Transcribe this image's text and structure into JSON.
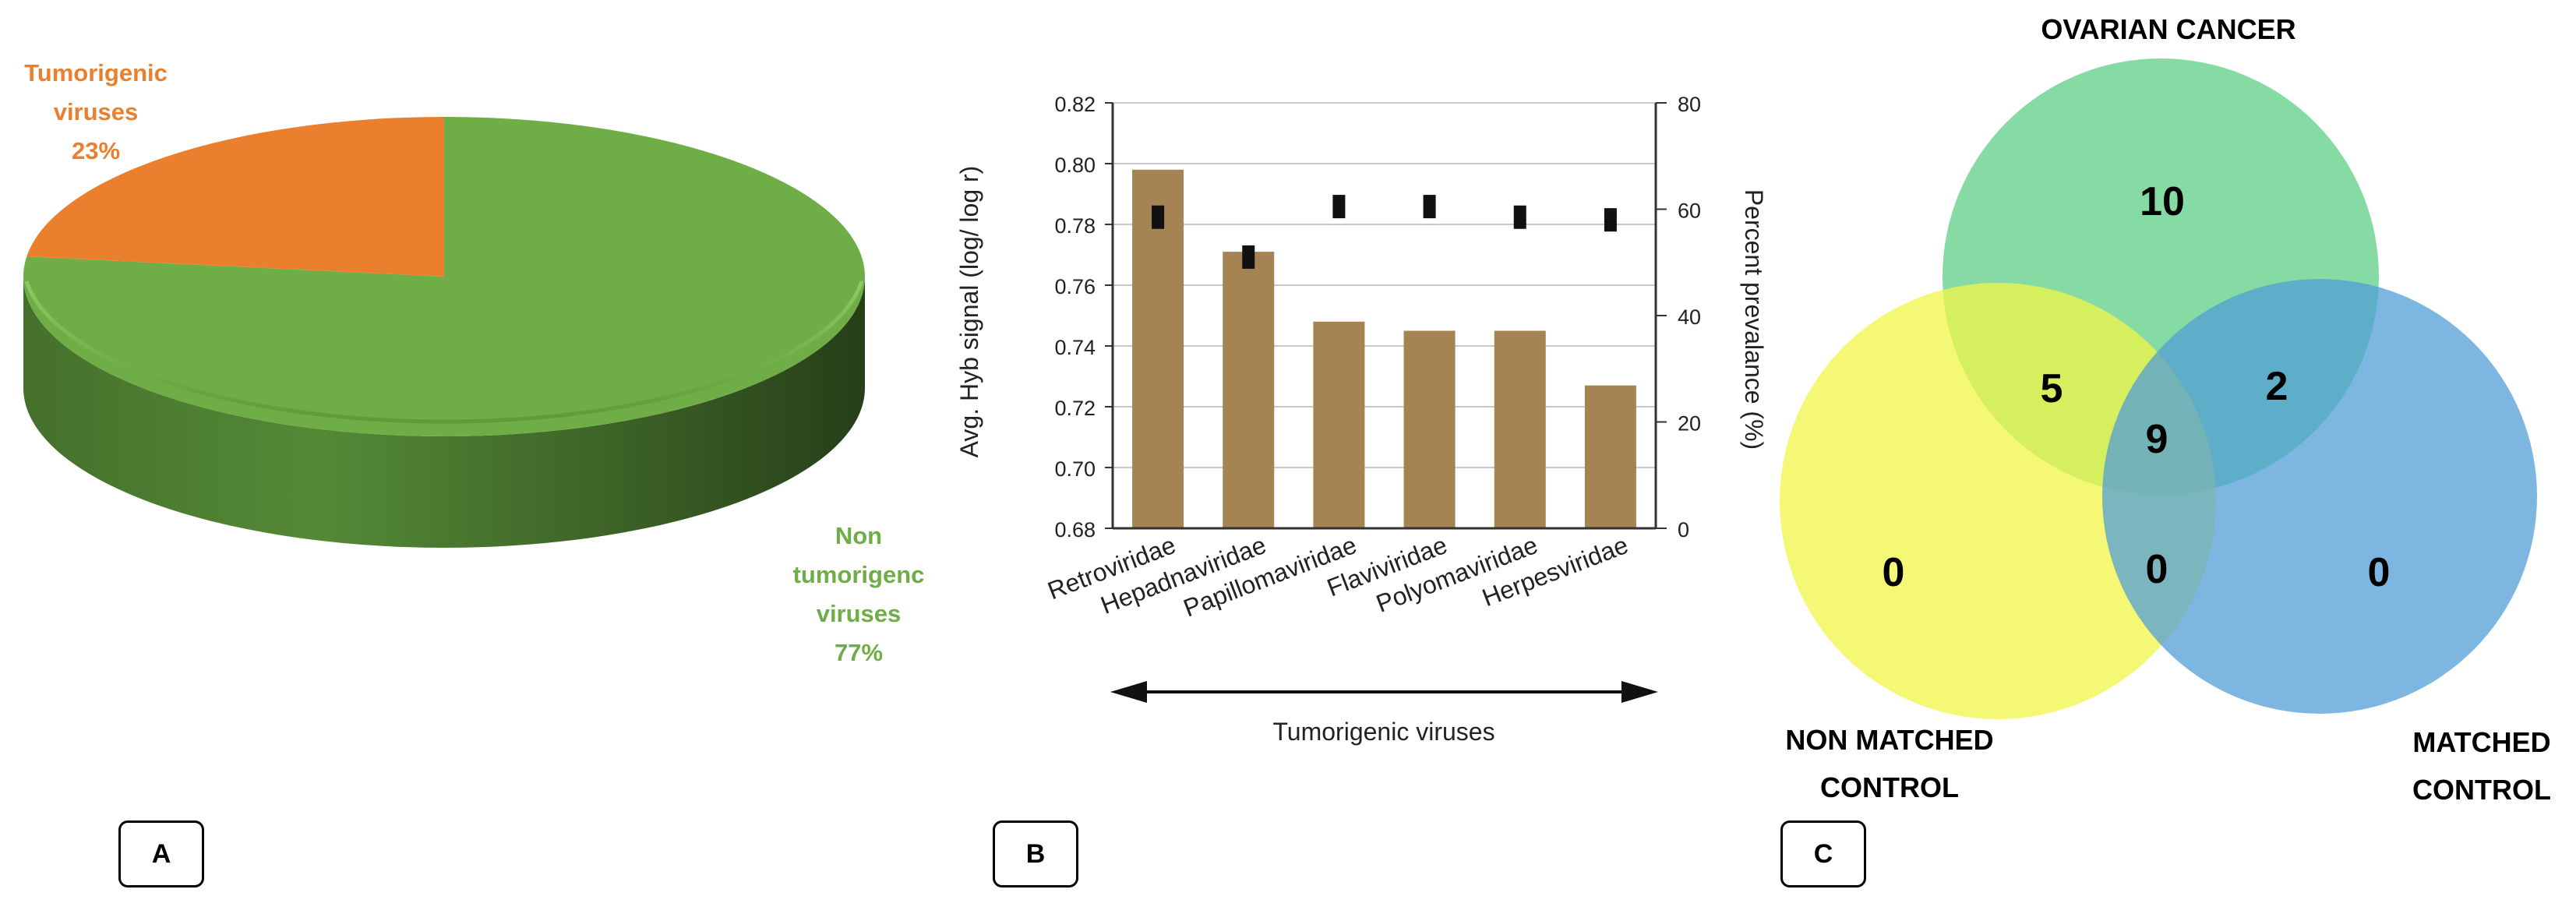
{
  "panels": {
    "a": "A",
    "b": "B",
    "c": "C"
  },
  "chart_data": [
    {
      "type": "pie",
      "style": "3d",
      "slices": [
        {
          "label_lines": [
            "Tumorigenic",
            "viruses",
            "23%"
          ],
          "value": 23,
          "color": "#ea7f2e"
        },
        {
          "label_lines": [
            "Non",
            "tumorigenc",
            "viruses",
            "77%"
          ],
          "value": 77,
          "color": "#6fad47"
        }
      ]
    },
    {
      "type": "bar",
      "categories": [
        "Retroviridae",
        "Hepadnaviridae",
        "Papillomaviridae",
        "Flaviviridae",
        "Polyomaviridae",
        "Herpesviridae"
      ],
      "series": [
        {
          "axis": "left",
          "kind": "bar",
          "color": "#a58352",
          "values": [
            0.798,
            0.771,
            0.748,
            0.745,
            0.745,
            0.727
          ]
        },
        {
          "axis": "right",
          "kind": "marker",
          "color": "#111111",
          "values": [
            58.5,
            51,
            60.5,
            60.5,
            58.5,
            58
          ]
        }
      ],
      "ylabel": "Avg. Hyb signal (log/ log r)",
      "y2label": "Percent prevalance (%)",
      "xlabel": "Tumorigenic viruses",
      "ylim": [
        0.68,
        0.82
      ],
      "y_ticks": [
        "0.68",
        "0.70",
        "0.72",
        "0.74",
        "0.76",
        "0.78",
        "0.80",
        "0.82"
      ],
      "y2lim": [
        0,
        80
      ],
      "y2_ticks": [
        "0",
        "20",
        "40",
        "60",
        "80"
      ],
      "grid": true
    },
    {
      "type": "venn",
      "sets": [
        {
          "label_lines": [
            "OVARIAN CANCER"
          ],
          "color": "#5ccf86"
        },
        {
          "label_lines": [
            "NON MATCHED",
            "CONTROL"
          ],
          "color": "#f2f545"
        },
        {
          "label_lines": [
            "MATCHED",
            "CONTROL"
          ],
          "color": "#4f9ed6"
        }
      ],
      "regions": {
        "ovarian_only": "10",
        "nonmatched_only": "0",
        "matched_only": "0",
        "ovarian_nonmatched": "5",
        "ovarian_matched": "2",
        "nonmatched_matched": "0",
        "all_three": "9"
      }
    }
  ]
}
